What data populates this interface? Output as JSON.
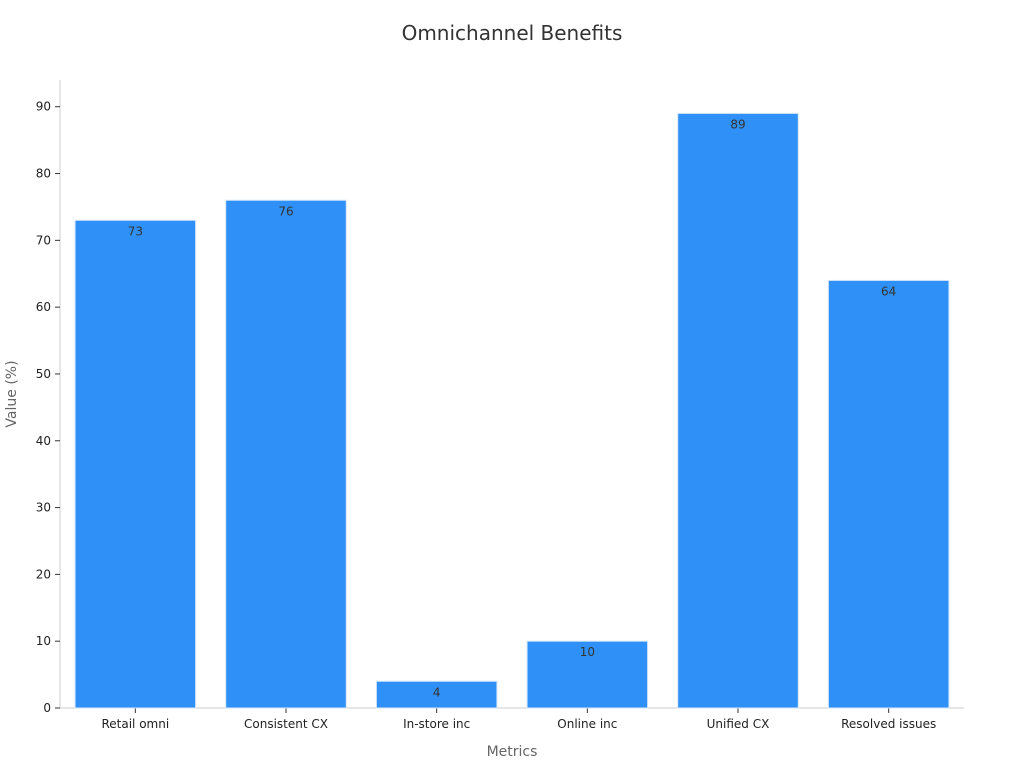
{
  "chart_data": {
    "type": "bar",
    "title": "Omnichannel Benefits",
    "xlabel": "Metrics",
    "ylabel": "Value (%)",
    "categories": [
      "Retail omni",
      "Consistent CX",
      "In-store inc",
      "Online inc",
      "Unified CX",
      "Resolved issues"
    ],
    "values": [
      73,
      76,
      4,
      10,
      89,
      64
    ],
    "ylim": [
      0,
      94
    ],
    "yticks": [
      0,
      10,
      20,
      30,
      40,
      50,
      60,
      70,
      80,
      90
    ],
    "grid": false,
    "legend": "none",
    "show_data_labels": true
  },
  "colors": {
    "bar": "#2f91f7",
    "bar_edge": "#d5e6fb",
    "axis": "#cccccc",
    "tick": "#333333"
  }
}
